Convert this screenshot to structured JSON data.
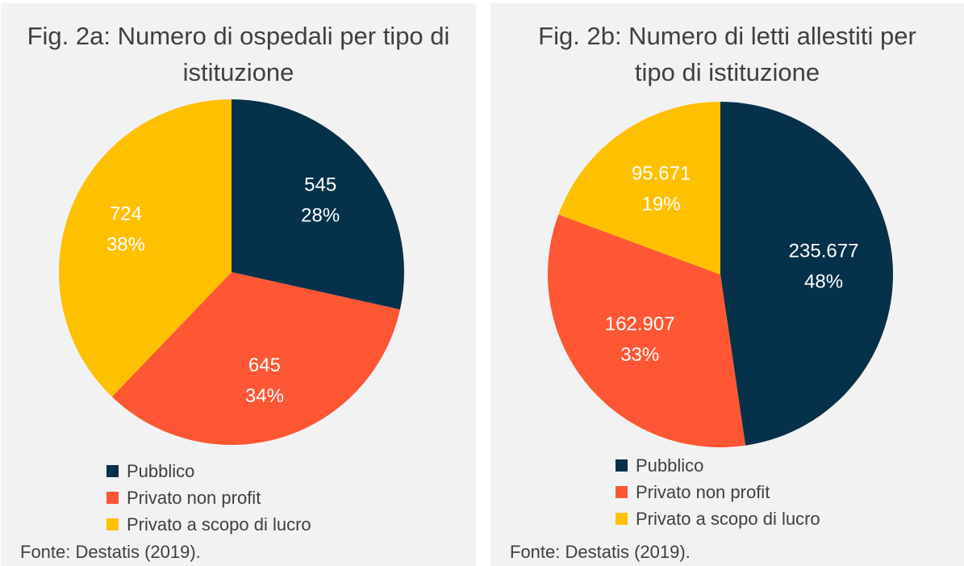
{
  "chart_data": [
    {
      "type": "pie",
      "title": "Fig. 2a: Numero di ospedali per tipo di istituzione",
      "categories": [
        "Pubblico",
        "Privato non profit",
        "Privato a scopo di lucro"
      ],
      "values": [
        545,
        645,
        724
      ],
      "value_labels": [
        "545",
        "645",
        "724"
      ],
      "percent_labels": [
        "28%",
        "34%",
        "38%"
      ],
      "colors": [
        "#06314a",
        "#ff5733",
        "#ffc000"
      ],
      "source": "Fonte: Destatis (2019).",
      "legend": "bottom"
    },
    {
      "type": "pie",
      "title": "Fig. 2b: Numero di letti allestiti per tipo di istituzione",
      "categories": [
        "Pubblico",
        "Privato non profit",
        "Privato a scopo di lucro"
      ],
      "values": [
        235677,
        162907,
        95671
      ],
      "value_labels": [
        "235.677",
        "162.907",
        "95.671"
      ],
      "percent_labels": [
        "48%",
        "33%",
        "19%"
      ],
      "colors": [
        "#06314a",
        "#ff5733",
        "#ffc000"
      ],
      "source": "Fonte: Destatis (2019).",
      "legend": "bottom"
    }
  ]
}
